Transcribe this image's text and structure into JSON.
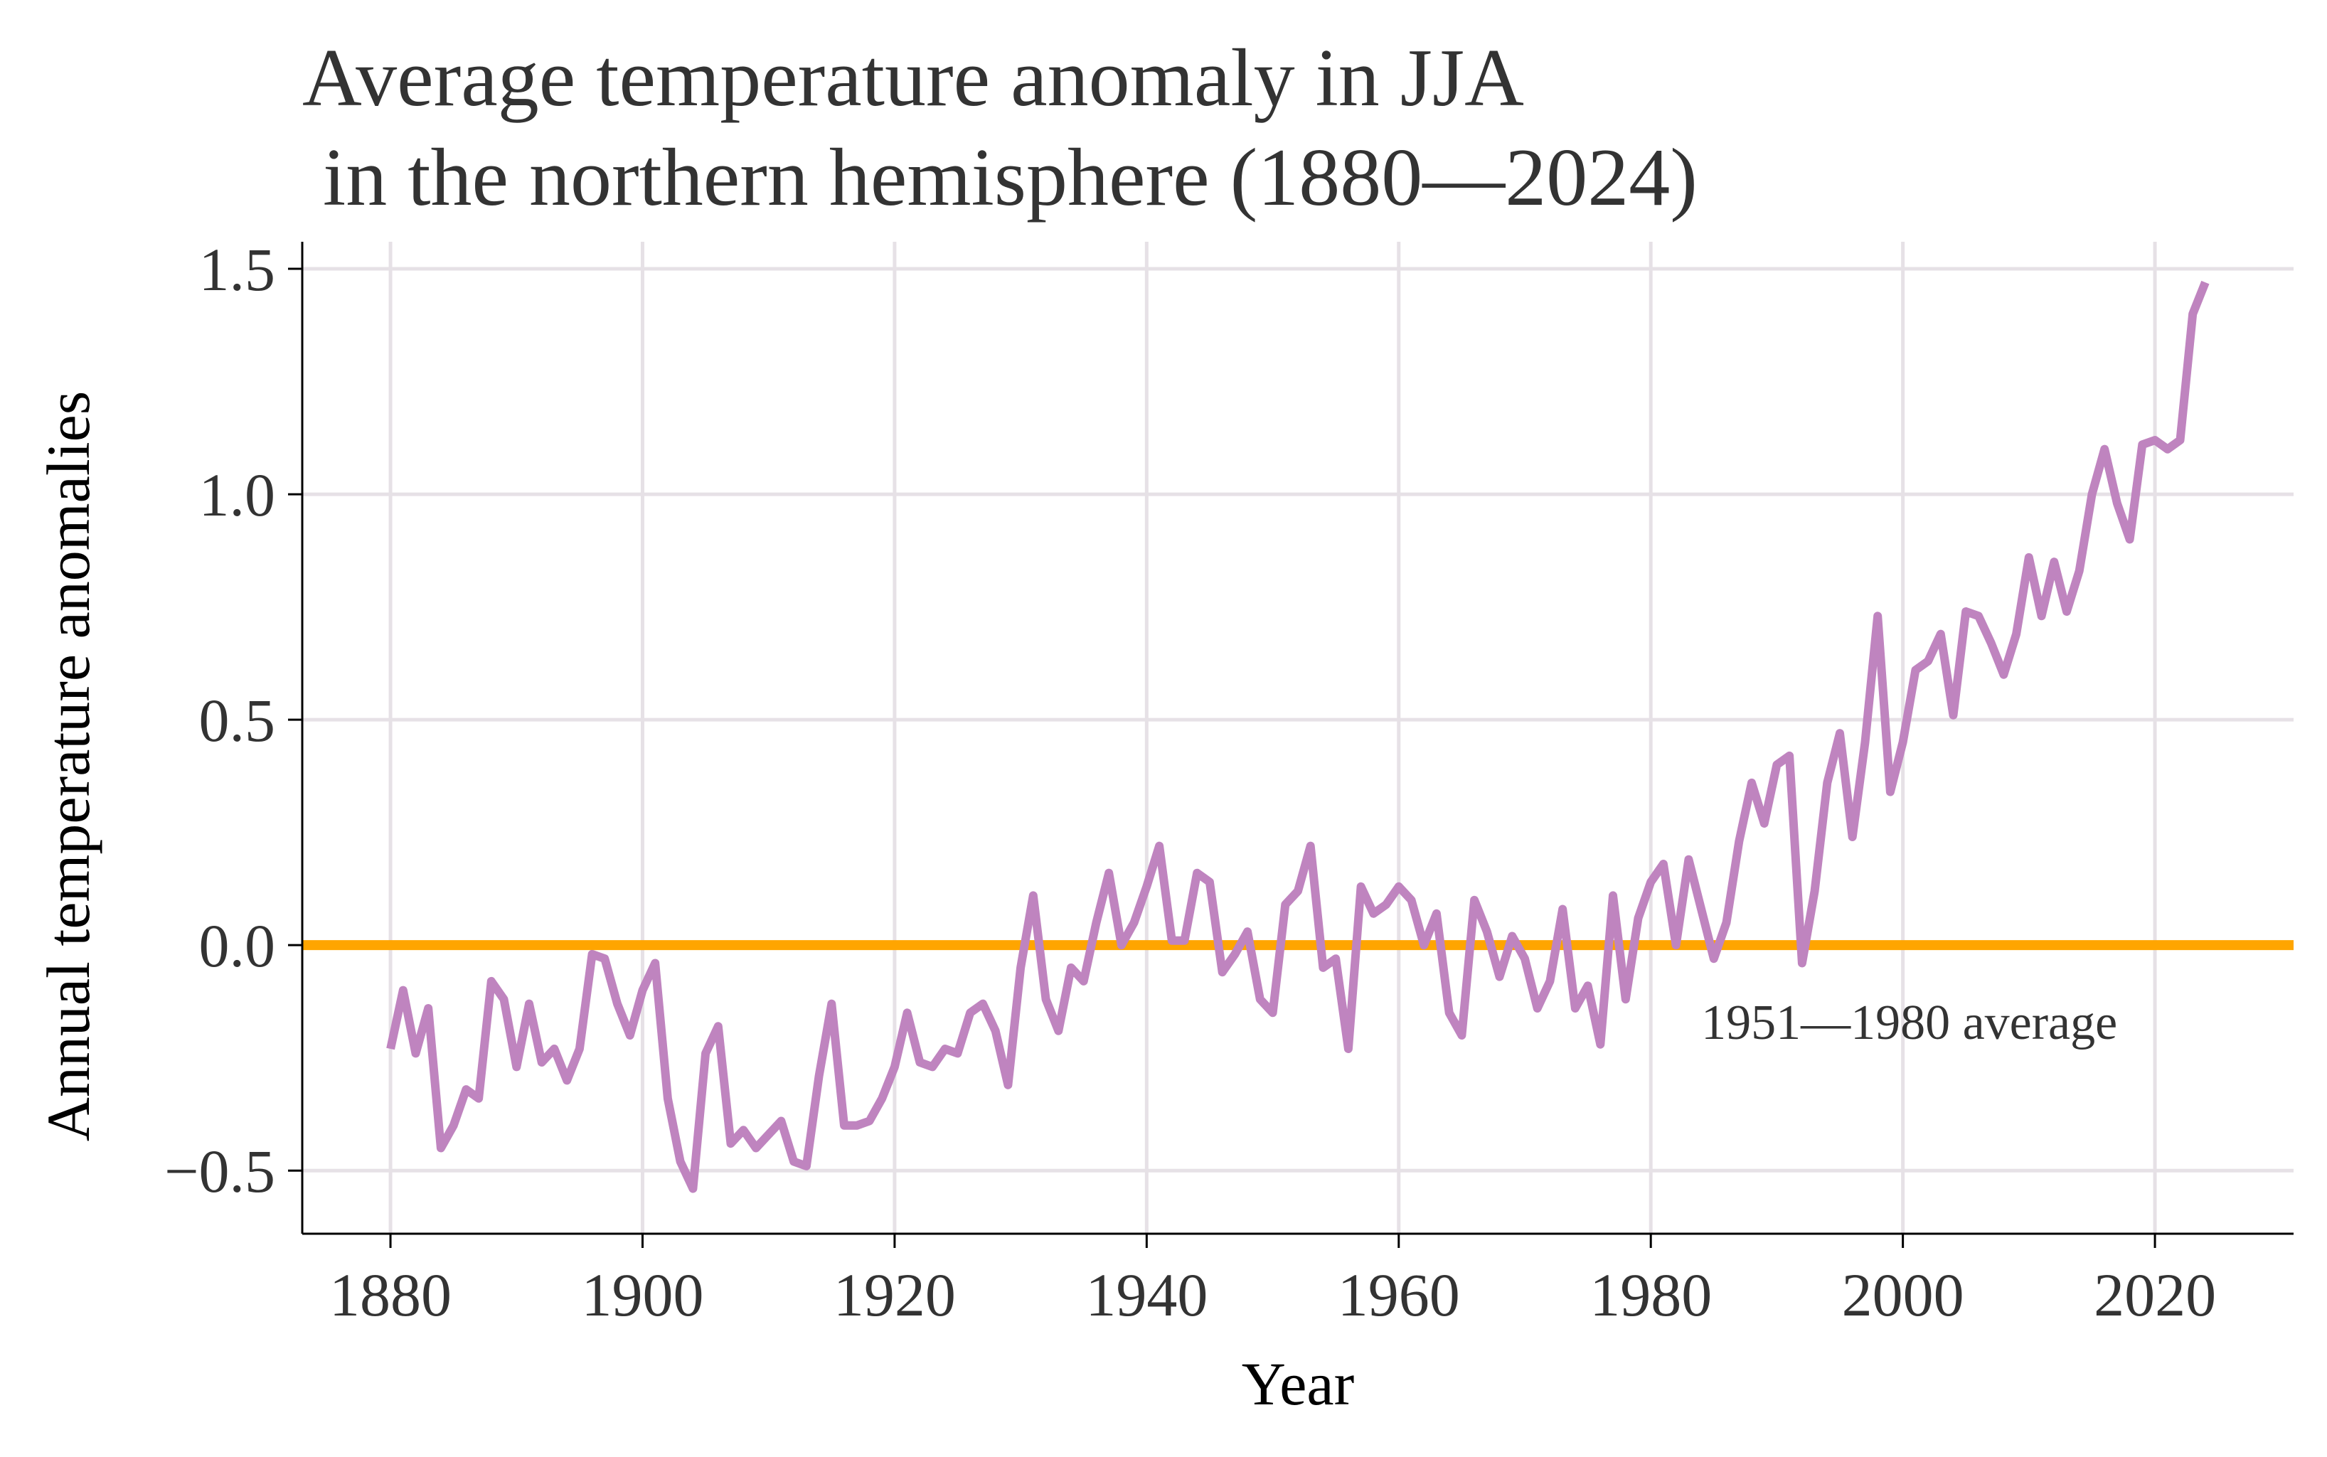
{
  "chart_data": {
    "type": "line",
    "title_lines": [
      "Average temperature anomaly in JJA",
      " in the northern hemisphere (1880—2024)"
    ],
    "xlabel": "Year",
    "ylabel": "Annual temperature anomalies",
    "xlim": [
      1873,
      2031
    ],
    "ylim": [
      -0.64,
      1.56
    ],
    "xticks": [
      1880,
      1900,
      1920,
      1940,
      1960,
      1980,
      2000,
      2020
    ],
    "xtick_labels": [
      "1880",
      "1900",
      "1920",
      "1940",
      "1960",
      "1980",
      "2000",
      "2020"
    ],
    "yticks": [
      -0.5,
      0.0,
      0.5,
      1.0,
      1.5
    ],
    "ytick_labels": [
      "−0.5",
      "0.0",
      "0.5",
      "1.0",
      "1.5"
    ],
    "grid": true,
    "reference_line": {
      "y": 0.0,
      "label": "1951—1980 average",
      "label_position": [
        1984,
        -0.17
      ],
      "color": "#FFA500"
    },
    "series": [
      {
        "color": "#BF84BF",
        "x": [
          1880,
          1881,
          1882,
          1883,
          1884,
          1885,
          1886,
          1887,
          1888,
          1889,
          1890,
          1891,
          1892,
          1893,
          1894,
          1895,
          1896,
          1897,
          1898,
          1899,
          1900,
          1901,
          1902,
          1903,
          1904,
          1905,
          1906,
          1907,
          1908,
          1909,
          1910,
          1911,
          1912,
          1913,
          1914,
          1915,
          1916,
          1917,
          1918,
          1919,
          1920,
          1921,
          1922,
          1923,
          1924,
          1925,
          1926,
          1927,
          1928,
          1929,
          1930,
          1931,
          1932,
          1933,
          1934,
          1935,
          1936,
          1937,
          1938,
          1939,
          1940,
          1941,
          1942,
          1943,
          1944,
          1945,
          1946,
          1947,
          1948,
          1949,
          1950,
          1951,
          1952,
          1953,
          1954,
          1955,
          1956,
          1957,
          1958,
          1959,
          1960,
          1961,
          1962,
          1963,
          1964,
          1965,
          1966,
          1967,
          1968,
          1969,
          1970,
          1971,
          1972,
          1973,
          1974,
          1975,
          1976,
          1977,
          1978,
          1979,
          1980,
          1981,
          1982,
          1983,
          1984,
          1985,
          1986,
          1987,
          1988,
          1989,
          1990,
          1991,
          1992,
          1993,
          1994,
          1995,
          1996,
          1997,
          1998,
          1999,
          2000,
          2001,
          2002,
          2003,
          2004,
          2005,
          2006,
          2007,
          2008,
          2009,
          2010,
          2011,
          2012,
          2013,
          2014,
          2015,
          2016,
          2017,
          2018,
          2019,
          2020,
          2021,
          2022,
          2023,
          2024
        ],
        "y": [
          -0.23,
          -0.1,
          -0.24,
          -0.14,
          -0.45,
          -0.4,
          -0.32,
          -0.34,
          -0.08,
          -0.12,
          -0.27,
          -0.13,
          -0.26,
          -0.23,
          -0.3,
          -0.23,
          -0.02,
          -0.03,
          -0.13,
          -0.2,
          -0.1,
          -0.04,
          -0.34,
          -0.48,
          -0.54,
          -0.24,
          -0.18,
          -0.44,
          -0.41,
          -0.45,
          -0.42,
          -0.39,
          -0.48,
          -0.49,
          -0.29,
          -0.13,
          -0.4,
          -0.4,
          -0.39,
          -0.34,
          -0.27,
          -0.15,
          -0.26,
          -0.27,
          -0.23,
          -0.24,
          -0.15,
          -0.13,
          -0.19,
          -0.31,
          -0.05,
          0.11,
          -0.12,
          -0.19,
          -0.05,
          -0.08,
          0.05,
          0.16,
          0.0,
          0.05,
          0.13,
          0.22,
          0.01,
          0.01,
          0.16,
          0.14,
          -0.06,
          -0.02,
          0.03,
          -0.12,
          -0.15,
          0.09,
          0.12,
          0.22,
          -0.05,
          -0.03,
          -0.23,
          0.13,
          0.07,
          0.09,
          0.13,
          0.1,
          0.0,
          0.07,
          -0.15,
          -0.2,
          0.1,
          0.03,
          -0.07,
          0.02,
          -0.03,
          -0.14,
          -0.08,
          0.08,
          -0.14,
          -0.09,
          -0.22,
          0.11,
          -0.12,
          0.06,
          0.14,
          0.18,
          0.0,
          0.19,
          0.08,
          -0.03,
          0.05,
          0.23,
          0.36,
          0.27,
          0.4,
          0.42,
          -0.04,
          0.12,
          0.36,
          0.47,
          0.24,
          0.45,
          0.73,
          0.34,
          0.45,
          0.61,
          0.63,
          0.69,
          0.51,
          0.74,
          0.73,
          0.67,
          0.6,
          0.69,
          0.86,
          0.73,
          0.85,
          0.74,
          0.83,
          1.0,
          1.1,
          0.98,
          0.9,
          1.11,
          1.12,
          1.1,
          1.12,
          1.4,
          1.47
        ]
      }
    ]
  }
}
